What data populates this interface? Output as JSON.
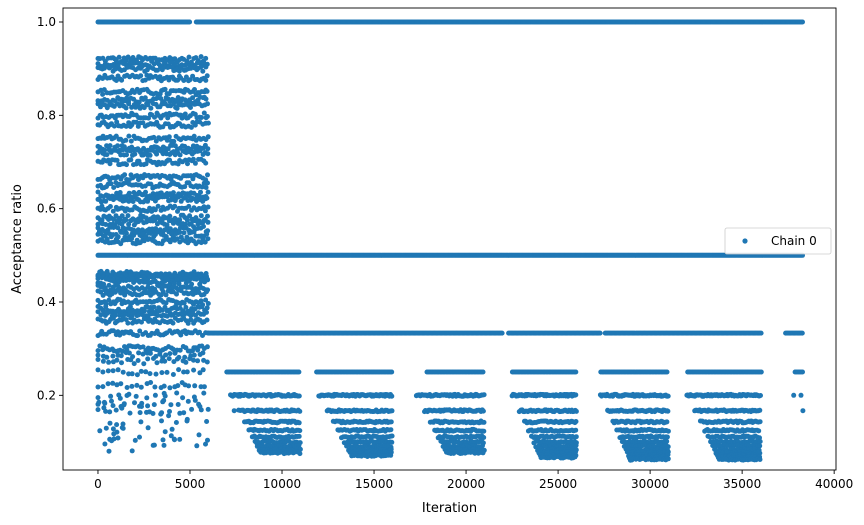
{
  "chart_data": {
    "type": "scatter",
    "title": "",
    "xlabel": "Iteration",
    "ylabel": "Acceptance ratio",
    "xlim": [
      -1900,
      40100
    ],
    "ylim": [
      0.04,
      1.03
    ],
    "xticks": [
      0,
      5000,
      10000,
      15000,
      20000,
      25000,
      30000,
      35000,
      40000
    ],
    "xtick_labels": [
      "0",
      "5000",
      "10000",
      "15000",
      "20000",
      "25000",
      "30000",
      "35000",
      "40000"
    ],
    "yticks": [
      0.2,
      0.4,
      0.6,
      0.8,
      1.0
    ],
    "ytick_labels": [
      "0.2",
      "0.4",
      "0.6",
      "0.8",
      "1.0"
    ],
    "grid": false,
    "legend": {
      "placement": "right",
      "entries": [
        "Chain 0"
      ]
    },
    "series": [
      {
        "name": "Chain 0",
        "color": "#1f77b4",
        "marker": "circle",
        "description_points": [
          [
            0,
            1.0
          ],
          [
            38300,
            1.0
          ],
          [
            0,
            0.5
          ],
          [
            38300,
            0.5
          ],
          [
            6000,
            0.333
          ],
          [
            38300,
            0.333
          ],
          [
            7000,
            0.25
          ],
          [
            38300,
            0.25
          ],
          [
            0,
            0.91
          ],
          [
            6000,
            0.91
          ],
          [
            0,
            0.55
          ],
          [
            6000,
            0.55
          ],
          [
            0,
            0.45
          ],
          [
            6000,
            0.45
          ],
          [
            1400,
            0.083
          ],
          [
            5900,
            0.1
          ],
          [
            10800,
            0.077
          ],
          [
            15700,
            0.07
          ],
          [
            20500,
            0.077
          ],
          [
            25500,
            0.067
          ],
          [
            30800,
            0.06
          ],
          [
            35900,
            0.06
          ]
        ]
      }
    ]
  }
}
